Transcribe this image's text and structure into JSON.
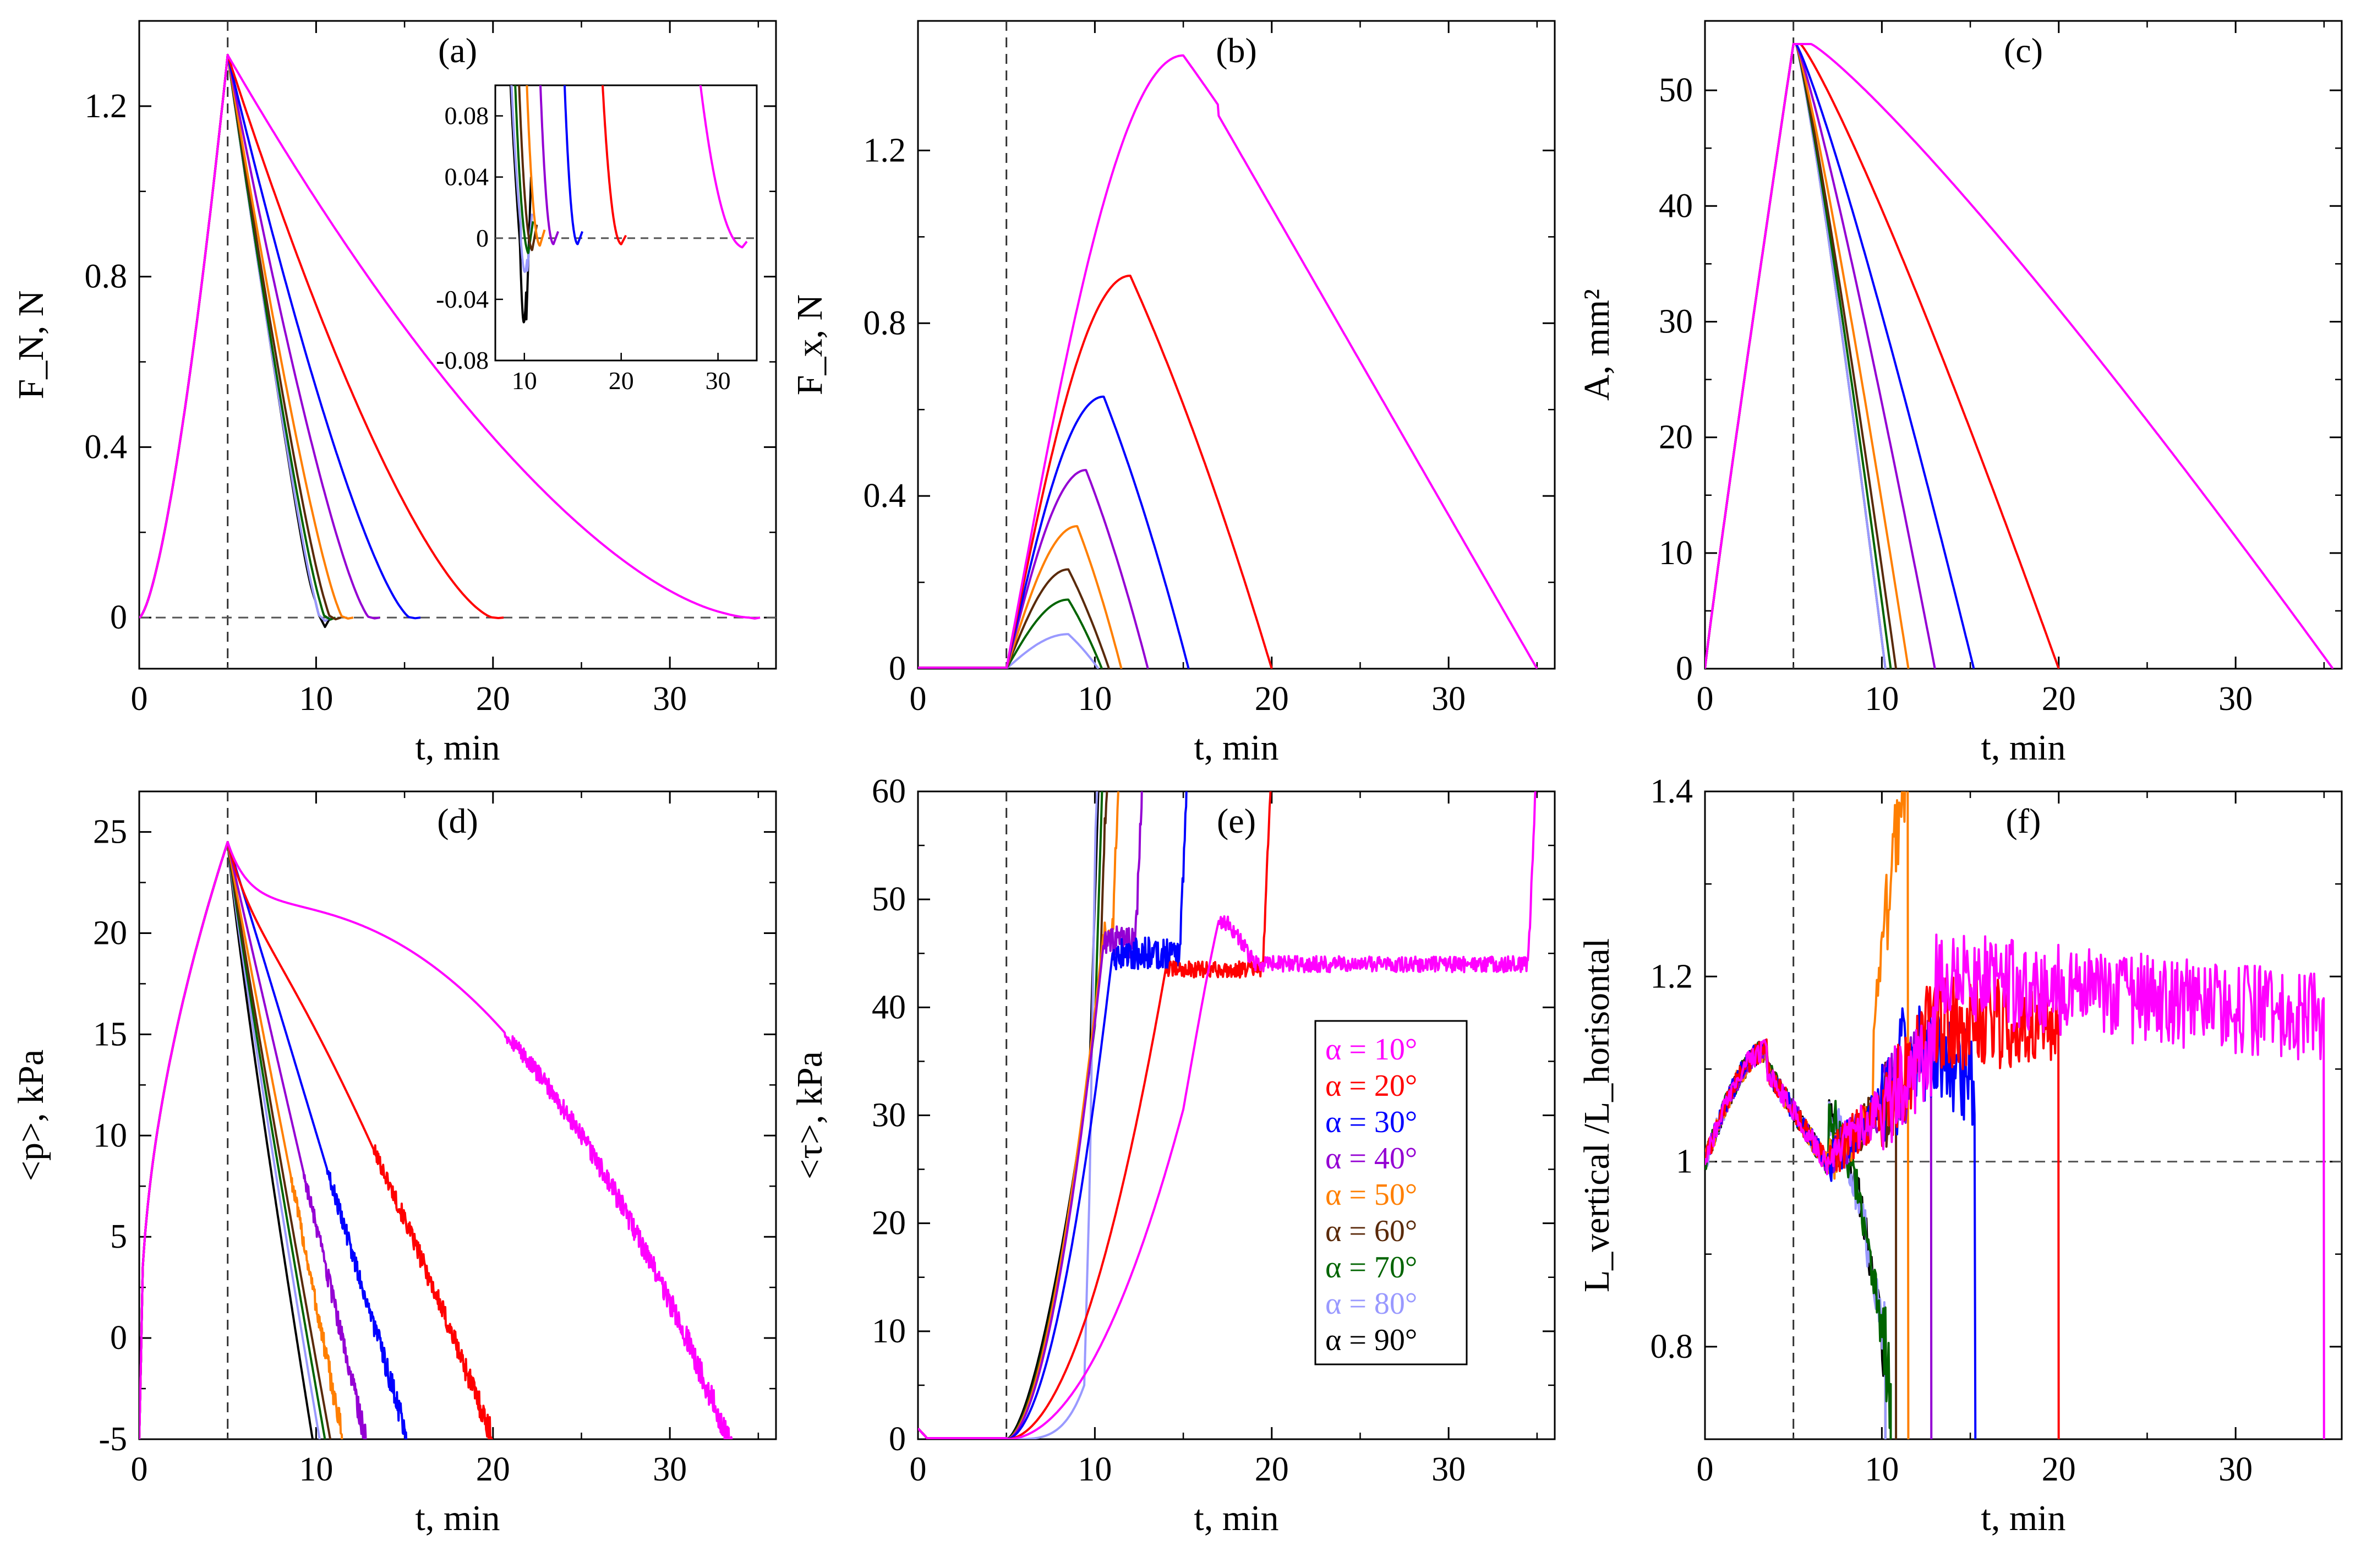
{
  "figure": {
    "series_names": [
      "α = 10°",
      "α = 20°",
      "α = 30°",
      "α = 40°",
      "α = 50°",
      "α = 60°",
      "α = 70°",
      "α = 80°",
      "α = 90°"
    ],
    "angles_deg": [
      10,
      20,
      30,
      40,
      50,
      60,
      70,
      80,
      90
    ],
    "colors": [
      "#ff00ff",
      "#ff0000",
      "#0000ff",
      "#9400d3",
      "#ff7f00",
      "#5a2a0a",
      "#006400",
      "#9999ff",
      "#000000"
    ],
    "legend": {
      "placement": "panel-e-right",
      "entries": [
        "α = 10°",
        "α = 20°",
        "α = 30°",
        "α = 40°",
        "α = 50°",
        "α = 60°",
        "α = 70°",
        "α = 80°",
        "α = 90°"
      ]
    },
    "t_unload_start_min": 5
  },
  "chart_data": [
    {
      "id": "a",
      "type": "line",
      "panel_label": "(a)",
      "xlabel": "t, min",
      "ylabel": "F_N, N",
      "xlim": [
        0,
        36
      ],
      "ylim": [
        -0.12,
        1.4
      ],
      "xticks": [
        0,
        10,
        20,
        30
      ],
      "yticks": [
        0,
        0.4,
        0.8,
        1.2
      ],
      "xtick_labels": [
        "0",
        "10",
        "20",
        "30"
      ],
      "ytick_labels": [
        "0",
        "0.4",
        "0.8",
        "1.2"
      ],
      "peak": [
        5,
        1.32
      ],
      "end_times_min": [
        34.5,
        20,
        15.3,
        13,
        11.5,
        10.8,
        10.5,
        10.2,
        10.2
      ],
      "decay_shape_exponent": [
        1.6,
        1.45,
        1.35,
        1.3,
        1.25,
        1.2,
        1.2,
        1.15,
        1.15
      ],
      "min_values": [
        -0.006,
        -0.003,
        -0.004,
        -0.005,
        -0.006,
        -0.01,
        -0.012,
        -0.02,
        -0.055
      ],
      "reference_lines": {
        "vertical_t": 5,
        "horizontal_y": 0
      },
      "inset": {
        "xlim": [
          7,
          34
        ],
        "ylim": [
          -0.08,
          0.1
        ],
        "xticks": [
          10,
          20,
          30
        ],
        "yticks": [
          -0.08,
          -0.04,
          0,
          0.04,
          0.08
        ],
        "xtick_labels": [
          "10",
          "20",
          "30"
        ],
        "ytick_labels": [
          "-0.08",
          "-0.04",
          "0",
          "0.04",
          "0.08"
        ]
      }
    },
    {
      "id": "b",
      "type": "line",
      "panel_label": "(b)",
      "xlabel": "t, min",
      "ylabel": "F_x, N",
      "xlim": [
        0,
        36
      ],
      "ylim": [
        0,
        1.5
      ],
      "xticks": [
        0,
        10,
        20,
        30
      ],
      "yticks": [
        0,
        0.4,
        0.8,
        1.2
      ],
      "xtick_labels": [
        "0",
        "10",
        "20",
        "30"
      ],
      "ytick_labels": [
        "0",
        "0.4",
        "0.8",
        "1.2"
      ],
      "peak_values": [
        1.42,
        0.91,
        0.63,
        0.46,
        0.33,
        0.23,
        0.16,
        0.08,
        0.0
      ],
      "peak_times_min": [
        15,
        12,
        10.5,
        9.5,
        9,
        8.5,
        8.5,
        8.5,
        5
      ],
      "end_times_min": [
        35,
        20,
        15.3,
        13,
        11.5,
        10.8,
        10.4,
        10.2,
        10.2
      ],
      "reference_lines": {
        "vertical_t": 5
      }
    },
    {
      "id": "c",
      "type": "line",
      "panel_label": "(c)",
      "xlabel": "t, min",
      "ylabel": "A, mm²",
      "xlim": [
        0,
        36
      ],
      "ylim": [
        0,
        56
      ],
      "xticks": [
        0,
        10,
        20,
        30
      ],
      "yticks": [
        0,
        10,
        20,
        30,
        40,
        50
      ],
      "xtick_labels": [
        "0",
        "10",
        "20",
        "30"
      ],
      "ytick_labels": [
        "0",
        "10",
        "20",
        "30",
        "40",
        "50"
      ],
      "peak": [
        5,
        54
      ],
      "end_times_min": [
        35.5,
        20,
        15.2,
        13,
        11.5,
        10.8,
        10.5,
        10.2,
        10.2
      ],
      "reference_lines": {
        "vertical_t": 5
      }
    },
    {
      "id": "d",
      "type": "line",
      "panel_label": "(d)",
      "xlabel": "t, min",
      "ylabel": "<p>, kPa",
      "xlim": [
        0,
        36
      ],
      "ylim": [
        -5,
        27
      ],
      "xticks": [
        0,
        10,
        20,
        30
      ],
      "yticks": [
        -5,
        0,
        5,
        10,
        15,
        20,
        25
      ],
      "xtick_labels": [
        "0",
        "10",
        "20",
        "30"
      ],
      "ytick_labels": [
        "-5",
        "0",
        "5",
        "10",
        "15",
        "20",
        "25"
      ],
      "peak": [
        5,
        24.5
      ],
      "end_times_min": [
        33.5,
        20,
        15.2,
        12.8,
        11.5,
        10.8,
        10.5,
        10.2,
        9.8
      ],
      "reference_lines": {
        "vertical_t": 5
      }
    },
    {
      "id": "e",
      "type": "line",
      "panel_label": "(e)",
      "xlabel": "t, min",
      "ylabel": "<τ>, kPa",
      "xlim": [
        0,
        36
      ],
      "ylim": [
        0,
        60
      ],
      "xticks": [
        0,
        10,
        20,
        30
      ],
      "yticks": [
        0,
        10,
        20,
        30,
        40,
        50,
        60
      ],
      "xtick_labels": [
        "0",
        "10",
        "20",
        "30"
      ],
      "ytick_labels": [
        "0",
        "10",
        "20",
        "30",
        "40",
        "50",
        "60"
      ],
      "plateau_values": [
        44,
        43.5,
        45,
        46,
        47,
        46,
        45,
        44,
        44
      ],
      "end_times_min": [
        35,
        20,
        15.3,
        12.8,
        11.5,
        10.8,
        10.5,
        10.2,
        10.2
      ],
      "reference_lines": {
        "vertical_t": 5
      }
    },
    {
      "id": "f",
      "type": "line",
      "panel_label": "(f)",
      "xlabel": "t, min",
      "ylabel": "L_vertical /L_horisontal",
      "xlim": [
        0,
        36
      ],
      "ylim": [
        0.7,
        1.4
      ],
      "xticks": [
        0,
        10,
        20,
        30
      ],
      "yticks": [
        0.8,
        1,
        1.2,
        1.4
      ],
      "xtick_labels": [
        "0",
        "10",
        "20",
        "30"
      ],
      "ytick_labels": [
        "0.8",
        "1",
        "1.2",
        "1.4"
      ],
      "end_times_min": [
        35,
        20,
        15.3,
        12.8,
        11.5,
        10.8,
        10.5,
        10.2,
        10.2
      ],
      "reference_lines": {
        "vertical_t": 5,
        "horizontal_y": 1
      }
    }
  ]
}
